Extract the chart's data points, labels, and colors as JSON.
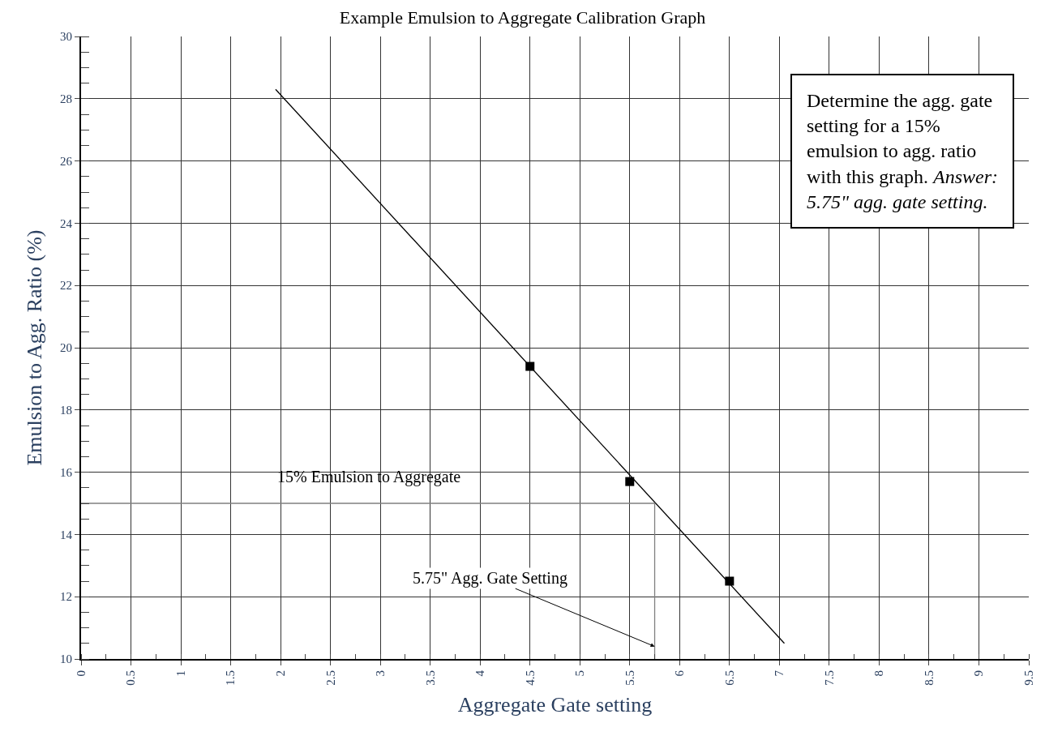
{
  "chart_data": {
    "type": "scatter",
    "title": "Example Emulsion to Aggregate Calibration Graph",
    "xlabel": "Aggregate Gate setting",
    "ylabel": "Emulsion to Agg. Ratio (%)",
    "xlim": [
      0,
      9.5
    ],
    "xticks": [
      0,
      0.5,
      1,
      1.5,
      2,
      2.5,
      3,
      3.5,
      4,
      4.5,
      5,
      5.5,
      6,
      6.5,
      7,
      7.5,
      8,
      8.5,
      9,
      9.5
    ],
    "ylim": [
      10,
      30
    ],
    "yticks": [
      10,
      12,
      14,
      16,
      18,
      20,
      22,
      24,
      26,
      28,
      30
    ],
    "grid": true,
    "series": [
      {
        "type": "line",
        "color": "#000000",
        "x": [
          1.95,
          7.05
        ],
        "values": [
          28.3,
          10.5
        ]
      },
      {
        "type": "line",
        "color": "#808080",
        "x": [
          0,
          5.75,
          5.75
        ],
        "values": [
          15,
          15,
          10
        ]
      },
      {
        "color": "#000000",
        "marker": "square",
        "x": [
          4.5,
          5.5,
          6.5
        ],
        "values": [
          19.4,
          15.7,
          12.5
        ]
      }
    ],
    "annotations": [
      "15% Emulsion to Aggregate",
      {
        "text": "5.75\" Agg. Gate Setting",
        "x": 5.75,
        "y": 10.4
      },
      "Determine the agg. gate setting for a 15% emulsion to agg. ratio with this graph.",
      "Answer: 5.75\" agg. gate setting."
    ]
  }
}
